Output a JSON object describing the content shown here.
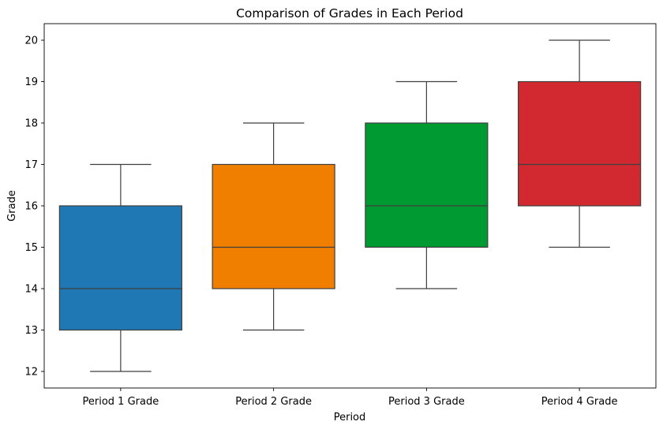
{
  "chart_data": {
    "type": "box",
    "title": "Comparison of Grades in Each Period",
    "xlabel": "Period",
    "ylabel": "Grade",
    "ylim": [
      11.6,
      20.4
    ],
    "yticks": [
      12,
      13,
      14,
      15,
      16,
      17,
      18,
      19,
      20
    ],
    "grid": false,
    "categories": [
      "Period 1 Grade",
      "Period 2 Grade",
      "Period 3 Grade",
      "Period 4 Grade"
    ],
    "boxes": [
      {
        "category": "Period 1 Grade",
        "min": 12,
        "q1": 13,
        "median": 14,
        "q3": 16,
        "max": 17,
        "color": "#1f77b4"
      },
      {
        "category": "Period 2 Grade",
        "min": 13,
        "q1": 14,
        "median": 15,
        "q3": 17,
        "max": 18,
        "color": "#f07f00"
      },
      {
        "category": "Period 3 Grade",
        "min": 14,
        "q1": 15,
        "median": 16,
        "q3": 18,
        "max": 19,
        "color": "#009a33"
      },
      {
        "category": "Period 4 Grade",
        "min": 15,
        "q1": 16,
        "median": 17,
        "q3": 19,
        "max": 20,
        "color": "#d1292f"
      }
    ]
  }
}
